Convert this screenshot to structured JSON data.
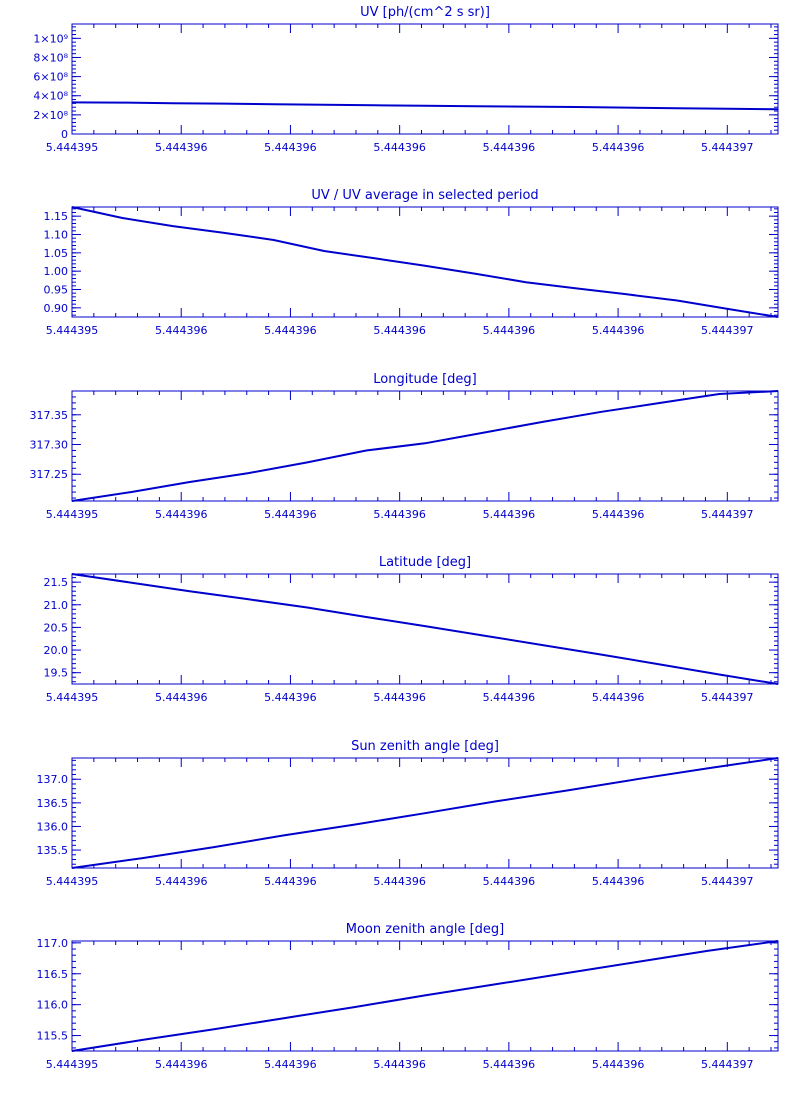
{
  "figure": {
    "color": "#0000cc",
    "x_tick_labels": [
      "5.444395",
      "5.444396",
      "5.444396",
      "5.444396",
      "5.444396",
      "5.444396",
      "5.444397"
    ],
    "x_tick_fraction_positions": [
      0,
      0.1547,
      0.3094,
      0.4641,
      0.6188,
      0.7735,
      0.9282
    ]
  },
  "chart_data": [
    {
      "type": "line",
      "title": "UV [ph/(cm^2 s sr)]",
      "ylim": [
        0,
        1150000000
      ],
      "y_ticks": [
        0,
        200000000,
        400000000,
        600000000,
        800000000,
        1000000000
      ],
      "y_tick_labels": [
        "0",
        "2×10⁸",
        "4×10⁸",
        "6×10⁸",
        "8×10⁸",
        "1×10⁹"
      ],
      "y_minor_step": 40000000,
      "series": [
        {
          "values": [
            330000000,
            328000000,
            322000000,
            318000000,
            312000000,
            305000000,
            300000000,
            295000000,
            290000000,
            286000000,
            282000000,
            276000000,
            270000000,
            263000000,
            258000000
          ]
        }
      ]
    },
    {
      "type": "line",
      "title": "UV / UV average in selected period",
      "ylim": [
        0.875,
        1.175
      ],
      "y_ticks": [
        0.9,
        0.95,
        1.0,
        1.05,
        1.1,
        1.15
      ],
      "y_tick_labels": [
        "0.90",
        "0.95",
        "1.00",
        "1.05",
        "1.10",
        "1.15"
      ],
      "y_minor_step": 0.01,
      "series": [
        {
          "values": [
            1.175,
            1.145,
            1.123,
            1.105,
            1.085,
            1.055,
            1.035,
            1.015,
            0.993,
            0.97,
            0.953,
            0.937,
            0.92,
            0.897,
            0.875
          ]
        }
      ]
    },
    {
      "type": "line",
      "title": "Longitude [deg]",
      "ylim": [
        317.205,
        317.39
      ],
      "y_ticks": [
        317.25,
        317.3,
        317.35
      ],
      "y_tick_labels": [
        "317.25",
        "317.30",
        "317.35"
      ],
      "y_minor_step": 0.01,
      "series": [
        {
          "values": [
            317.205,
            317.22,
            317.237,
            317.252,
            317.27,
            317.29,
            317.302,
            317.32,
            317.338,
            317.355,
            317.37,
            317.385,
            317.39
          ]
        }
      ]
    },
    {
      "type": "line",
      "title": "Latitude [deg]",
      "ylim": [
        19.25,
        21.68
      ],
      "y_ticks": [
        19.5,
        20.0,
        20.5,
        21.0,
        21.5
      ],
      "y_tick_labels": [
        "19.5",
        "20.0",
        "20.5",
        "21.0",
        "21.5"
      ],
      "y_minor_step": 0.1,
      "series": [
        {
          "values": [
            21.68,
            21.49,
            21.3,
            21.12,
            20.94,
            20.73,
            20.53,
            20.32,
            20.11,
            19.9,
            19.68,
            19.46,
            19.25
          ]
        }
      ]
    },
    {
      "type": "line",
      "title": "Sun zenith angle [deg]",
      "ylim": [
        135.12,
        137.45
      ],
      "y_ticks": [
        135.5,
        136.0,
        136.5,
        137.0
      ],
      "y_tick_labels": [
        "135.5",
        "136.0",
        "136.5",
        "137.0"
      ],
      "y_minor_step": 0.1,
      "series": [
        {
          "values": [
            135.12,
            135.33,
            135.56,
            135.81,
            136.04,
            136.28,
            136.53,
            136.76,
            137.0,
            137.23,
            137.45
          ]
        }
      ]
    },
    {
      "type": "line",
      "title": "Moon zenith angle [deg]",
      "ylim": [
        115.25,
        117.03
      ],
      "y_ticks": [
        115.5,
        116.0,
        116.5,
        117.0
      ],
      "y_tick_labels": [
        "115.5",
        "116.0",
        "116.5",
        "117.0"
      ],
      "y_minor_step": 0.1,
      "series": [
        {
          "values": [
            115.25,
            115.43,
            115.6,
            115.78,
            115.96,
            116.15,
            116.33,
            116.51,
            116.69,
            116.87,
            117.03
          ]
        }
      ]
    }
  ]
}
